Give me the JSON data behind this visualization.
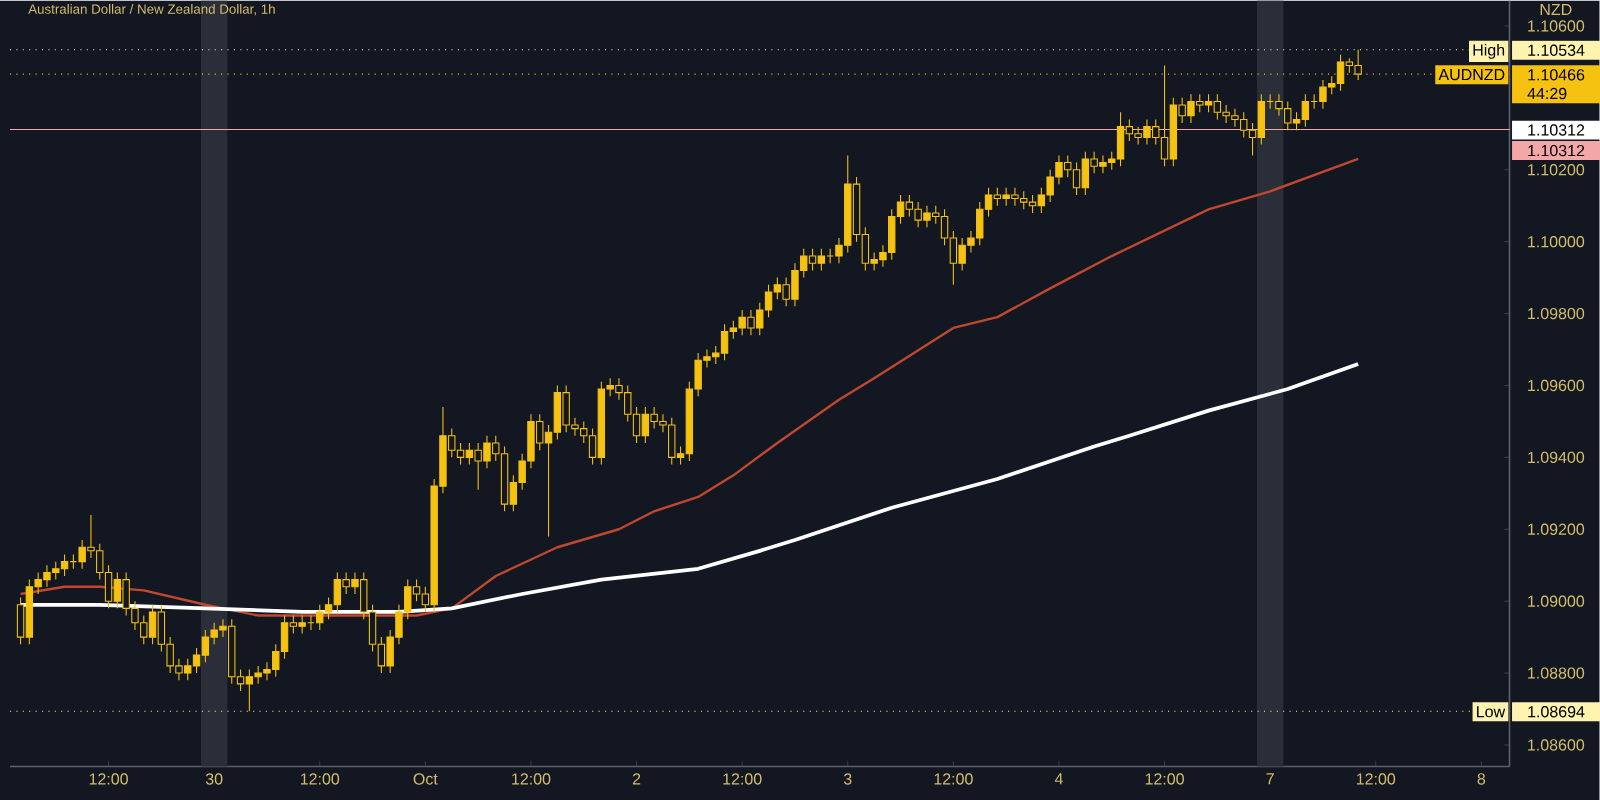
{
  "chart_data": {
    "type": "candlestick",
    "title": "Australian Dollar / New Zealand Dollar, 1h",
    "ylabel": "NZD",
    "color": "#f5c211",
    "categories": [
      null,
      null,
      null,
      null,
      null,
      null,
      null,
      null,
      null,
      null,
      "12:00",
      null,
      null,
      null,
      null,
      null,
      null,
      null,
      null,
      null,
      null,
      null,
      "30",
      null,
      null,
      null,
      null,
      null,
      null,
      null,
      null,
      null,
      null,
      null,
      "12:00",
      null,
      null,
      null,
      null,
      null,
      null,
      null,
      null,
      null,
      null,
      null,
      "Oct",
      null,
      null,
      null,
      null,
      null,
      null,
      null,
      null,
      null,
      null,
      null,
      "12:00",
      null,
      null,
      null,
      null,
      null,
      null,
      null,
      null,
      null,
      null,
      null,
      "2",
      null,
      null,
      null,
      null,
      null,
      null,
      null,
      null,
      null,
      null,
      null,
      "12:00",
      null,
      null,
      null,
      null,
      null,
      null,
      null,
      null,
      null,
      null,
      null,
      "3",
      null,
      null,
      null,
      null,
      null,
      null,
      null,
      null,
      null,
      null,
      null,
      "12:00",
      null,
      null,
      null,
      null,
      null,
      null,
      null,
      null,
      null,
      null,
      null,
      "4",
      null,
      null,
      null,
      null,
      null,
      null,
      null,
      null,
      null,
      null,
      null,
      "12:00",
      null,
      null,
      null,
      null,
      null,
      null,
      null,
      null,
      null,
      null,
      null,
      "7",
      null,
      null,
      null,
      null,
      null,
      null,
      null,
      null,
      null,
      null,
      null,
      "12:00",
      null,
      null,
      null,
      null,
      null,
      null,
      null,
      null,
      null,
      null,
      null,
      "8"
    ],
    "ohlc": [
      [
        1.0899,
        1.0901,
        1.0888,
        1.089
      ],
      [
        1.089,
        1.0906,
        1.0888,
        1.0904
      ],
      [
        1.0904,
        1.0908,
        1.0902,
        1.0906
      ],
      [
        1.0906,
        1.091,
        1.0904,
        1.0908
      ],
      [
        1.0908,
        1.0911,
        1.0906,
        1.0909
      ],
      [
        1.0909,
        1.0913,
        1.0907,
        1.0911
      ],
      [
        1.0911,
        1.0913,
        1.0909,
        1.0911
      ],
      [
        1.0911,
        1.0917,
        1.0909,
        1.0915
      ],
      [
        1.0915,
        1.0924,
        1.0912,
        1.0914
      ],
      [
        1.0914,
        1.0916,
        1.0906,
        1.0908
      ],
      [
        1.0908,
        1.091,
        1.0898,
        1.09
      ],
      [
        1.09,
        1.0908,
        1.0898,
        1.0906
      ],
      [
        1.0906,
        1.0908,
        1.0896,
        1.0898
      ],
      [
        1.0898,
        1.09,
        1.0892,
        1.0894
      ],
      [
        1.0894,
        1.0896,
        1.0888,
        1.089
      ],
      [
        1.089,
        1.0899,
        1.0888,
        1.0897
      ],
      [
        1.0897,
        1.0899,
        1.0886,
        1.0888
      ],
      [
        1.0888,
        1.089,
        1.088,
        1.0882
      ],
      [
        1.0882,
        1.0884,
        1.0878,
        1.088
      ],
      [
        1.088,
        1.0884,
        1.0878,
        1.0882
      ],
      [
        1.0882,
        1.0887,
        1.088,
        1.0885
      ],
      [
        1.0885,
        1.0892,
        1.0883,
        1.089
      ],
      [
        1.089,
        1.0894,
        1.0888,
        1.0892
      ],
      [
        1.0892,
        1.0895,
        1.089,
        1.0893
      ],
      [
        1.0893,
        1.0895,
        1.0877,
        1.0879
      ],
      [
        1.0879,
        1.0881,
        1.0875,
        1.0877
      ],
      [
        1.0877,
        1.0881,
        1.08694,
        1.0879
      ],
      [
        1.0879,
        1.0882,
        1.0877,
        1.088
      ],
      [
        1.088,
        1.0883,
        1.0878,
        1.0881
      ],
      [
        1.0881,
        1.0888,
        1.0879,
        1.0886
      ],
      [
        1.0886,
        1.0896,
        1.0884,
        1.0894
      ],
      [
        1.0894,
        1.0896,
        1.0891,
        1.0893
      ],
      [
        1.0893,
        1.0896,
        1.0891,
        1.0894
      ],
      [
        1.0894,
        1.0896,
        1.0892,
        1.0894
      ],
      [
        1.0894,
        1.0899,
        1.0892,
        1.0897
      ],
      [
        1.0897,
        1.0901,
        1.0895,
        1.0899
      ],
      [
        1.0899,
        1.0908,
        1.0897,
        1.0906
      ],
      [
        1.0906,
        1.0908,
        1.0902,
        1.0904
      ],
      [
        1.0904,
        1.0908,
        1.0902,
        1.0906
      ],
      [
        1.0906,
        1.0908,
        1.0895,
        1.0897
      ],
      [
        1.0897,
        1.0899,
        1.0886,
        1.0888
      ],
      [
        1.0888,
        1.089,
        1.088,
        1.0882
      ],
      [
        1.0882,
        1.0892,
        1.088,
        1.089
      ],
      [
        1.089,
        1.0899,
        1.0888,
        1.0897
      ],
      [
        1.0897,
        1.0906,
        1.0895,
        1.0904
      ],
      [
        1.0904,
        1.0906,
        1.09,
        1.0902
      ],
      [
        1.0902,
        1.0904,
        1.0897,
        1.0899
      ],
      [
        1.0899,
        1.0934,
        1.0897,
        1.0932
      ],
      [
        1.0932,
        1.0954,
        1.093,
        1.0946
      ],
      [
        1.0946,
        1.0948,
        1.094,
        1.0942
      ],
      [
        1.0942,
        1.0944,
        1.0938,
        1.094
      ],
      [
        1.094,
        1.0944,
        1.0938,
        1.0942
      ],
      [
        1.0942,
        1.0944,
        1.0931,
        1.0939
      ],
      [
        1.0939,
        1.0946,
        1.0937,
        1.0944
      ],
      [
        1.0944,
        1.0946,
        1.0939,
        1.0941
      ],
      [
        1.0941,
        1.0943,
        1.0925,
        1.0927
      ],
      [
        1.0927,
        1.0935,
        1.0925,
        1.0933
      ],
      [
        1.0933,
        1.0941,
        1.0931,
        1.0939
      ],
      [
        1.0939,
        1.0952,
        1.0937,
        1.095
      ],
      [
        1.095,
        1.0952,
        1.0942,
        1.0944
      ],
      [
        1.0944,
        1.0949,
        1.0918,
        1.0947
      ],
      [
        1.0947,
        1.096,
        1.0945,
        1.0958
      ],
      [
        1.0958,
        1.096,
        1.0947,
        1.0949
      ],
      [
        1.0949,
        1.0951,
        1.0946,
        1.0948
      ],
      [
        1.0948,
        1.095,
        1.0944,
        1.0946
      ],
      [
        1.0946,
        1.0948,
        1.0938,
        1.094
      ],
      [
        1.094,
        1.0961,
        1.0938,
        1.0959
      ],
      [
        1.0959,
        1.0962,
        1.0957,
        1.096
      ],
      [
        1.096,
        1.0962,
        1.0956,
        1.0958
      ],
      [
        1.0958,
        1.096,
        1.095,
        1.0952
      ],
      [
        1.0952,
        1.0954,
        1.0944,
        1.0946
      ],
      [
        1.0946,
        1.0954,
        1.0944,
        1.0952
      ],
      [
        1.0952,
        1.0954,
        1.0948,
        1.095
      ],
      [
        1.095,
        1.0952,
        1.0947,
        1.0949
      ],
      [
        1.0949,
        1.0951,
        1.0938,
        1.094
      ],
      [
        1.094,
        1.0943,
        1.0938,
        1.0941
      ],
      [
        1.0941,
        1.0961,
        1.0939,
        1.0959
      ],
      [
        1.0959,
        1.0969,
        1.0957,
        1.0967
      ],
      [
        1.0967,
        1.097,
        1.0965,
        1.0968
      ],
      [
        1.0968,
        1.0971,
        1.0966,
        1.0969
      ],
      [
        1.0969,
        1.0977,
        1.0967,
        1.0975
      ],
      [
        1.0975,
        1.0978,
        1.0973,
        1.0976
      ],
      [
        1.0976,
        1.0981,
        1.0974,
        1.0979
      ],
      [
        1.0979,
        1.0981,
        1.0974,
        1.0976
      ],
      [
        1.0976,
        1.0983,
        1.0974,
        1.0981
      ],
      [
        1.0981,
        1.0988,
        1.0979,
        1.0986
      ],
      [
        1.0986,
        1.099,
        1.0984,
        1.0988
      ],
      [
        1.0988,
        1.099,
        1.0982,
        1.0984
      ],
      [
        1.0984,
        1.0994,
        1.0982,
        1.0992
      ],
      [
        1.0992,
        1.0998,
        1.099,
        1.0996
      ],
      [
        1.0996,
        1.0998,
        1.0992,
        1.0994
      ],
      [
        1.0994,
        1.0998,
        1.0992,
        1.0996
      ],
      [
        1.0996,
        1.0998,
        1.0994,
        1.0996
      ],
      [
        1.0996,
        1.1001,
        1.0994,
        1.0999
      ],
      [
        1.0999,
        1.1024,
        1.0997,
        1.1016
      ],
      [
        1.1016,
        1.1018,
        1.1,
        1.1002
      ],
      [
        1.1002,
        1.1004,
        1.0992,
        1.0994
      ],
      [
        1.0994,
        1.0997,
        1.0992,
        1.0995
      ],
      [
        1.0995,
        1.0999,
        1.0993,
        1.0997
      ],
      [
        1.0997,
        1.1009,
        1.0995,
        1.1007
      ],
      [
        1.1007,
        1.1013,
        1.1005,
        1.1011
      ],
      [
        1.1011,
        1.1013,
        1.1007,
        1.1009
      ],
      [
        1.1009,
        1.1011,
        1.1004,
        1.1006
      ],
      [
        1.1006,
        1.101,
        1.1004,
        1.1008
      ],
      [
        1.1008,
        1.101,
        1.1005,
        1.1007
      ],
      [
        1.1007,
        1.1009,
        1.0999,
        1.1001
      ],
      [
        1.1001,
        1.1003,
        1.0988,
        1.0994
      ],
      [
        1.0994,
        1.1001,
        1.0992,
        1.0999
      ],
      [
        1.0999,
        1.1003,
        1.0997,
        1.1001
      ],
      [
        1.1001,
        1.1011,
        1.0999,
        1.1009
      ],
      [
        1.1009,
        1.1015,
        1.1007,
        1.1013
      ],
      [
        1.1013,
        1.1015,
        1.101,
        1.1012
      ],
      [
        1.1012,
        1.1015,
        1.101,
        1.1013
      ],
      [
        1.1013,
        1.1015,
        1.101,
        1.1012
      ],
      [
        1.1012,
        1.1014,
        1.1009,
        1.1011
      ],
      [
        1.1011,
        1.1013,
        1.1008,
        1.101
      ],
      [
        1.101,
        1.1015,
        1.1008,
        1.1013
      ],
      [
        1.1013,
        1.102,
        1.1011,
        1.1018
      ],
      [
        1.1018,
        1.1024,
        1.1016,
        1.1022
      ],
      [
        1.1022,
        1.1024,
        1.1018,
        1.102
      ],
      [
        1.102,
        1.1022,
        1.1013,
        1.1015
      ],
      [
        1.1015,
        1.1025,
        1.1013,
        1.1023
      ],
      [
        1.1023,
        1.1025,
        1.1019,
        1.1021
      ],
      [
        1.1021,
        1.1024,
        1.1019,
        1.1022
      ],
      [
        1.1022,
        1.1025,
        1.102,
        1.1023
      ],
      [
        1.1023,
        1.1036,
        1.1021,
        1.1032
      ],
      [
        1.1032,
        1.1034,
        1.1028,
        1.103
      ],
      [
        1.103,
        1.1032,
        1.1027,
        1.1029
      ],
      [
        1.1029,
        1.1034,
        1.1027,
        1.1032
      ],
      [
        1.1032,
        1.1034,
        1.1027,
        1.1029
      ],
      [
        1.1029,
        1.1049,
        1.1021,
        1.1023
      ],
      [
        1.1023,
        1.104,
        1.1021,
        1.1038
      ],
      [
        1.1038,
        1.104,
        1.1033,
        1.1035
      ],
      [
        1.1035,
        1.1041,
        1.1033,
        1.1039
      ],
      [
        1.1039,
        1.1041,
        1.1036,
        1.1038
      ],
      [
        1.1038,
        1.1041,
        1.1036,
        1.1039
      ],
      [
        1.1039,
        1.1041,
        1.1034,
        1.1036
      ],
      [
        1.1036,
        1.1038,
        1.1033,
        1.1035
      ],
      [
        1.1035,
        1.1037,
        1.1032,
        1.1034
      ],
      [
        1.1034,
        1.1036,
        1.1029,
        1.1031
      ],
      [
        1.1031,
        1.1033,
        1.1024,
        1.1029
      ],
      [
        1.1029,
        1.1041,
        1.1027,
        1.1039
      ],
      [
        1.1039,
        1.1041,
        1.1037,
        1.1039
      ],
      [
        1.1039,
        1.1041,
        1.1035,
        1.1037
      ],
      [
        1.1037,
        1.1039,
        1.1031,
        1.1033
      ],
      [
        1.1033,
        1.1036,
        1.1031,
        1.1034
      ],
      [
        1.1034,
        1.1041,
        1.1032,
        1.1039
      ],
      [
        1.1039,
        1.1041,
        1.1037,
        1.1039
      ],
      [
        1.1039,
        1.1045,
        1.1037,
        1.1043
      ],
      [
        1.1043,
        1.1046,
        1.1041,
        1.1044
      ],
      [
        1.1044,
        1.1052,
        1.1042,
        1.105
      ],
      [
        1.105,
        1.1051,
        1.1047,
        1.1049
      ],
      [
        1.1049,
        1.10534,
        1.1045,
        1.10466
      ],
      null,
      null,
      null,
      null,
      null,
      null,
      null,
      null,
      null,
      null,
      null,
      null,
      null,
      null
    ],
    "series": [
      {
        "type": "line",
        "color": "#c0482e",
        "values": [
          1.0902,
          null,
          null,
          null,
          null,
          1.0904,
          null,
          null,
          null,
          1.0904,
          null,
          null,
          null,
          null,
          1.0903,
          null,
          null,
          null,
          null,
          null,
          null,
          1.0899,
          null,
          null,
          null,
          null,
          null,
          1.0896,
          null,
          null,
          null,
          null,
          null,
          null,
          1.0896,
          null,
          null,
          null,
          null,
          null,
          null,
          1.0896,
          null,
          null,
          null,
          1.0896,
          null,
          null,
          null,
          1.0898,
          null,
          null,
          null,
          null,
          1.0907,
          null,
          null,
          null,
          null,
          null,
          null,
          1.0915,
          null,
          null,
          null,
          null,
          null,
          null,
          1.092,
          null,
          null,
          null,
          1.0925,
          null,
          null,
          null,
          null,
          1.0929,
          null,
          null,
          null,
          1.0935,
          null,
          null,
          null,
          null,
          1.0944,
          null,
          null,
          null,
          null,
          null,
          null,
          1.0956,
          null,
          null,
          null,
          1.0962,
          null,
          null,
          null,
          null,
          null,
          null,
          null,
          null,
          1.0976,
          null,
          null,
          null,
          null,
          1.0979,
          null,
          null,
          null,
          null,
          null,
          1.0987,
          null,
          null,
          null,
          null,
          null,
          null,
          1.0996,
          null,
          null,
          null,
          null,
          null,
          null,
          null,
          null,
          null,
          null,
          1.1009,
          null,
          null,
          null,
          null,
          null,
          null,
          1.1014,
          null,
          null,
          null,
          null,
          null,
          null,
          null,
          null,
          null,
          1.1023,
          null,
          null,
          null,
          null,
          null,
          null,
          null,
          null,
          null,
          null,
          null,
          null,
          null,
          null
        ]
      },
      {
        "type": "line",
        "color": "#ffffff",
        "values": [
          1.0899,
          null,
          null,
          null,
          null,
          null,
          null,
          null,
          null,
          1.0899,
          null,
          null,
          null,
          null,
          null,
          null,
          null,
          null,
          null,
          null,
          null,
          1.0898,
          null,
          null,
          null,
          null,
          null,
          null,
          null,
          null,
          null,
          null,
          1.0897,
          null,
          null,
          null,
          null,
          null,
          null,
          null,
          null,
          null,
          null,
          1.0897,
          null,
          null,
          null,
          null,
          null,
          1.0898,
          null,
          null,
          null,
          null,
          null,
          null,
          null,
          1.0902,
          null,
          null,
          null,
          null,
          null,
          null,
          null,
          null,
          1.0906,
          null,
          null,
          null,
          null,
          null,
          null,
          null,
          null,
          null,
          null,
          1.0909,
          null,
          null,
          null,
          null,
          null,
          null,
          1.0914,
          null,
          null,
          null,
          1.0917,
          null,
          null,
          null,
          null,
          null,
          null,
          null,
          null,
          null,
          null,
          1.0926,
          null,
          null,
          null,
          null,
          null,
          null,
          null,
          null,
          null,
          null,
          null,
          1.0934,
          null,
          null,
          null,
          null,
          null,
          null,
          null,
          null,
          null,
          null,
          1.0943,
          null,
          null,
          null,
          1.0946,
          null,
          null,
          null,
          null,
          null,
          null,
          null,
          null,
          1.0953,
          null,
          null,
          null,
          null,
          null,
          null,
          null,
          null,
          1.0959,
          null,
          null,
          null,
          null,
          null,
          null,
          null,
          1.0966,
          null,
          null,
          null,
          null,
          null,
          null,
          null,
          null,
          null,
          null,
          null,
          null,
          null,
          null
        ]
      }
    ],
    "ylim": [
      1.0854,
      1.1067
    ],
    "yticks": [
      {
        "value": 1.086,
        "label": "1.08600"
      },
      {
        "value": 1.088,
        "label": "1.08800"
      },
      {
        "value": 1.09,
        "label": "1.09000"
      },
      {
        "value": 1.092,
        "label": "1.09200"
      },
      {
        "value": 1.094,
        "label": "1.09400"
      },
      {
        "value": 1.096,
        "label": "1.09600"
      },
      {
        "value": 1.098,
        "label": "1.09800"
      },
      {
        "value": 1.1,
        "label": "1.10000"
      },
      {
        "value": 1.102,
        "label": "1.10200"
      },
      {
        "value": 1.106,
        "label": "1.10600"
      }
    ],
    "ref_lines": [
      {
        "axis": "y",
        "value": 1.10534,
        "label": "1.10534",
        "color": "#fff3b0",
        "line_style": "dotted"
      },
      {
        "axis": "y",
        "value": 1.10466,
        "label": "1.10466",
        "color": "#f5c211",
        "line_style": "dotted"
      },
      {
        "axis": "y",
        "value": 1.10312,
        "label": "1.10312",
        "color": "#ffffff",
        "line_style": "solid"
      },
      {
        "axis": "y",
        "value": 1.10312,
        "label": "1.10312",
        "color": "#f4a7a7",
        "line_style": "solid"
      },
      {
        "axis": "y",
        "value": 1.08694,
        "label": "1.08694",
        "color": "#fff3b0",
        "line_style": "dotted"
      }
    ],
    "annotations": [
      "High",
      "AUDNZD",
      "44:29",
      "Low"
    ]
  }
}
